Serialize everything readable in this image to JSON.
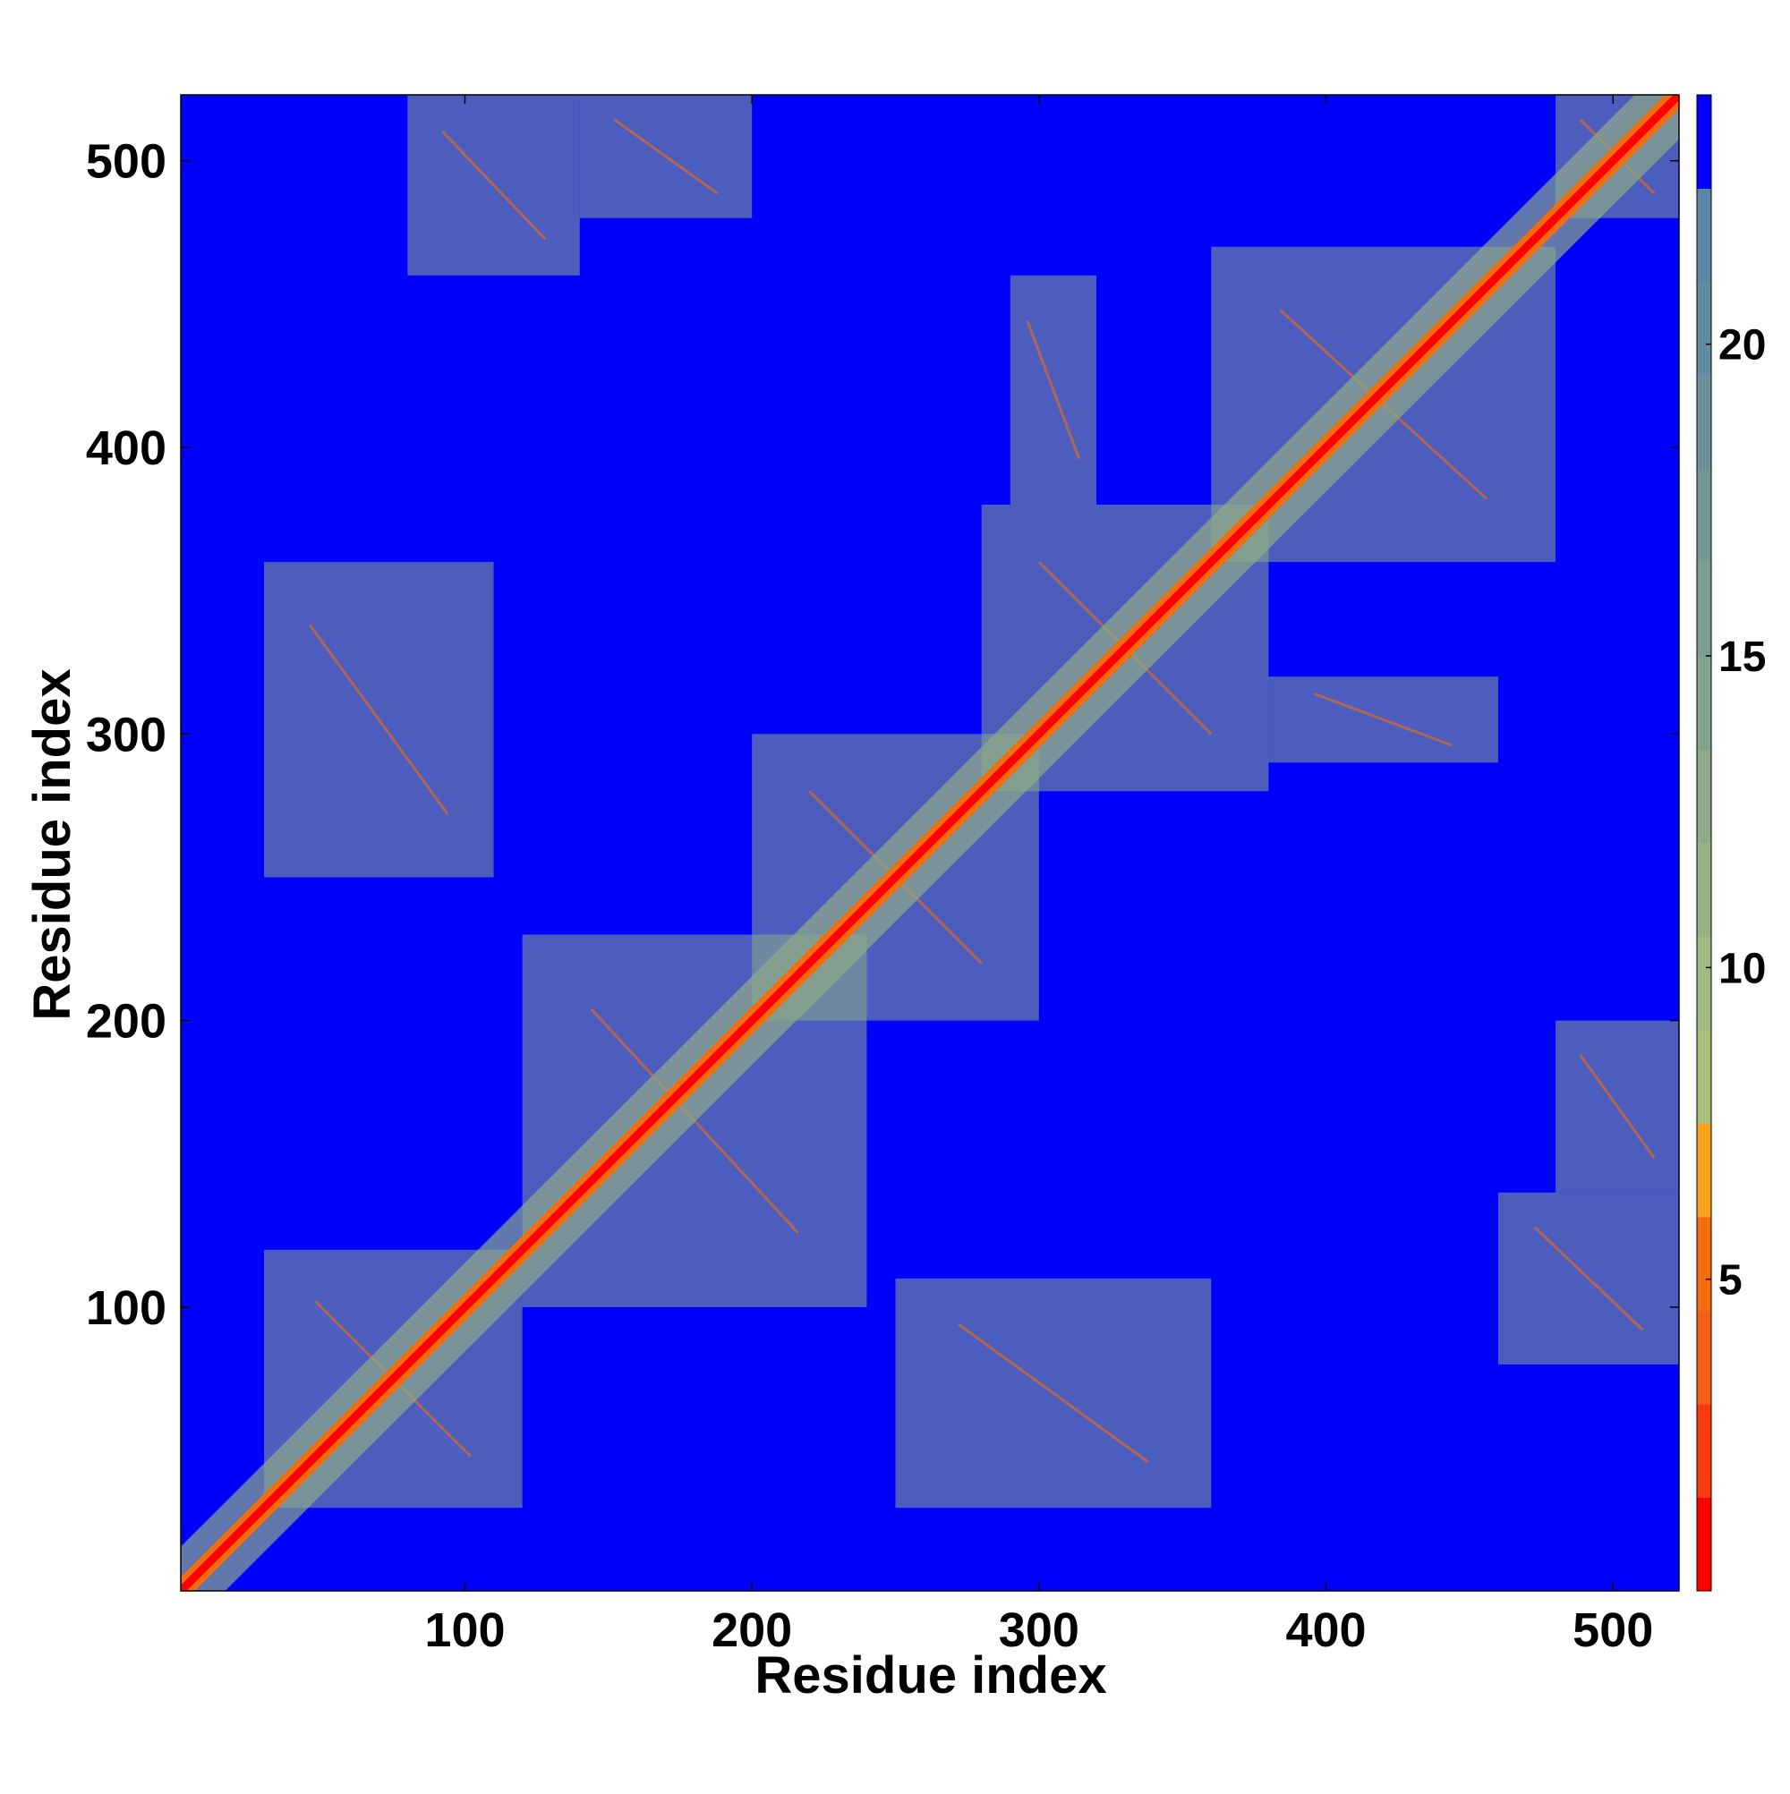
{
  "chart_data": {
    "type": "heatmap",
    "title": "",
    "xlabel": "Residue index",
    "ylabel": "Residue index",
    "xlim": [
      1,
      523
    ],
    "ylim": [
      1,
      523
    ],
    "x_ticks": [
      100,
      200,
      300,
      400,
      500
    ],
    "y_ticks": [
      100,
      200,
      300,
      400,
      500
    ],
    "colorbar": {
      "ticks": [
        5,
        10,
        15,
        20
      ],
      "range": [
        0,
        24
      ],
      "levels": [
        {
          "from": 0,
          "to": 1.5,
          "color": "#ff0000"
        },
        {
          "from": 1.5,
          "to": 3,
          "color": "#f83a10"
        },
        {
          "from": 3,
          "to": 4.5,
          "color": "#f35f14"
        },
        {
          "from": 4.5,
          "to": 6,
          "color": "#f26c10"
        },
        {
          "from": 6,
          "to": 7.5,
          "color": "#f7a11a"
        },
        {
          "from": 7.5,
          "to": 9,
          "color": "#a9c07e"
        },
        {
          "from": 9,
          "to": 10.5,
          "color": "#9fba80"
        },
        {
          "from": 10.5,
          "to": 12,
          "color": "#95b284"
        },
        {
          "from": 12,
          "to": 13.5,
          "color": "#8caa88"
        },
        {
          "from": 13.5,
          "to": 15,
          "color": "#83a48c"
        },
        {
          "from": 15,
          "to": 16.5,
          "color": "#7b9e90"
        },
        {
          "from": 16.5,
          "to": 18,
          "color": "#739896"
        },
        {
          "from": 18,
          "to": 19.5,
          "color": "#6b929a"
        },
        {
          "from": 19.5,
          "to": 21,
          "color": "#638ca0"
        },
        {
          "from": 21,
          "to": 22.5,
          "color": "#5b87a6"
        },
        {
          "from": 22.5,
          "to": 24,
          "color": "#0000ff"
        }
      ]
    },
    "background_color": "#0000ff",
    "diagonal_color": "#ff0000",
    "contact_regions": [
      {
        "x": [
          1,
          523
        ],
        "y": [
          1,
          523
        ],
        "kind": "diagonal-band"
      },
      {
        "x": [
          30,
          120
        ],
        "y": [
          30,
          120
        ],
        "kind": "block"
      },
      {
        "x": [
          120,
          240
        ],
        "y": [
          100,
          230
        ],
        "kind": "block"
      },
      {
        "x": [
          200,
          300
        ],
        "y": [
          200,
          300
        ],
        "kind": "block"
      },
      {
        "x": [
          280,
          380
        ],
        "y": [
          280,
          380
        ],
        "kind": "block"
      },
      {
        "x": [
          360,
          480
        ],
        "y": [
          360,
          470
        ],
        "kind": "block"
      },
      {
        "x": [
          480,
          523
        ],
        "y": [
          480,
          523
        ],
        "kind": "block"
      },
      {
        "x": [
          30,
          110
        ],
        "y": [
          250,
          360
        ],
        "kind": "block"
      },
      {
        "x": [
          250,
          360
        ],
        "y": [
          30,
          110
        ],
        "kind": "block"
      },
      {
        "x": [
          80,
          140
        ],
        "y": [
          460,
          523
        ],
        "kind": "block"
      },
      {
        "x": [
          460,
          523
        ],
        "y": [
          80,
          140
        ],
        "kind": "block"
      },
      {
        "x": [
          380,
          460
        ],
        "y": [
          290,
          320
        ],
        "kind": "block"
      },
      {
        "x": [
          290,
          320
        ],
        "y": [
          380,
          460
        ],
        "kind": "block"
      },
      {
        "x": [
          140,
          200
        ],
        "y": [
          480,
          523
        ],
        "kind": "block"
      },
      {
        "x": [
          480,
          523
        ],
        "y": [
          140,
          200
        ],
        "kind": "block"
      }
    ]
  }
}
